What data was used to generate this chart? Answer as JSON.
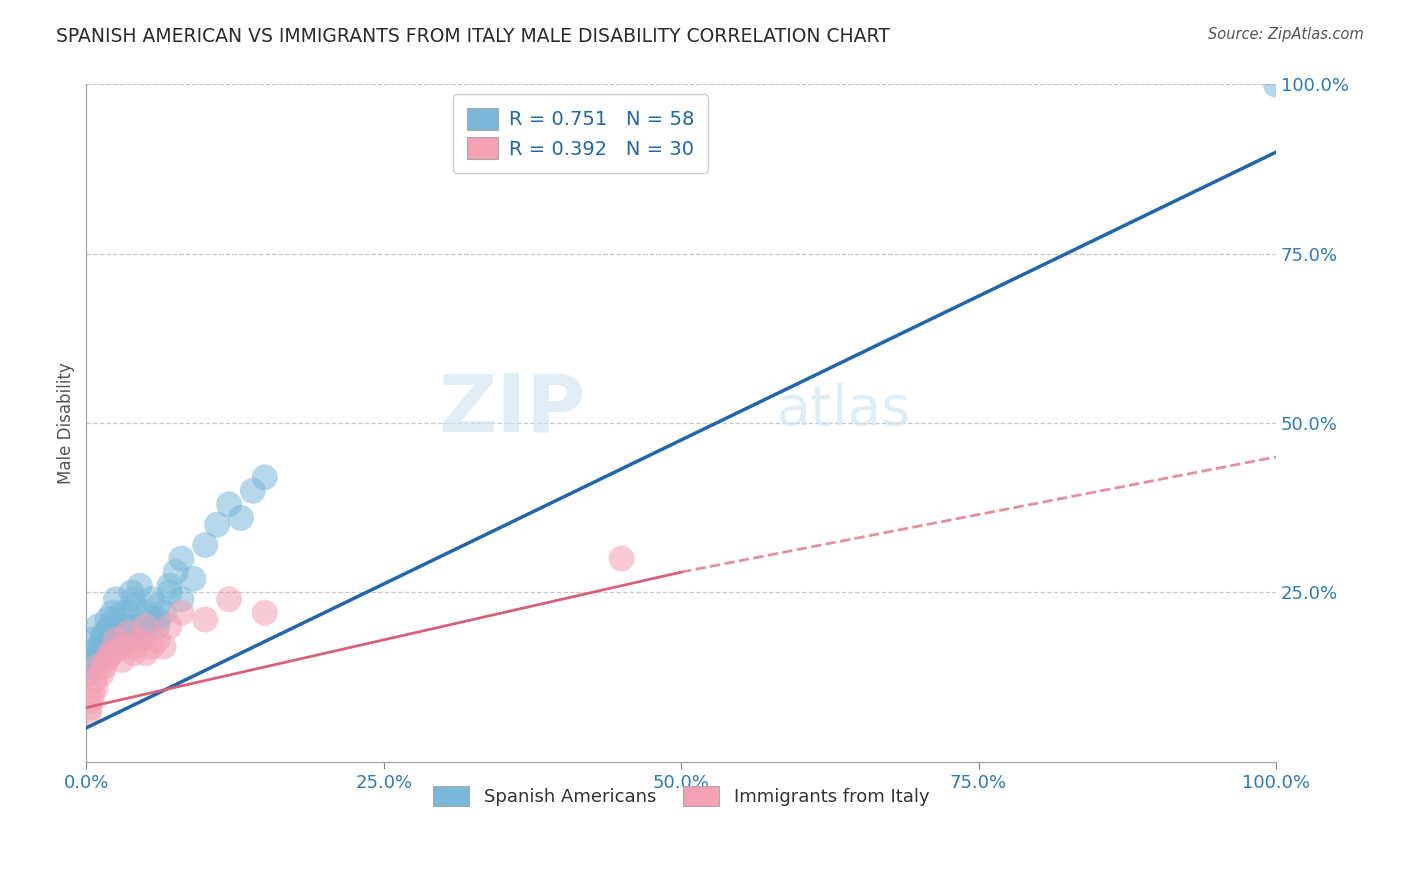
{
  "title": "SPANISH AMERICAN VS IMMIGRANTS FROM ITALY MALE DISABILITY CORRELATION CHART",
  "source": "Source: ZipAtlas.com",
  "ylabel": "Male Disability",
  "watermark_zip": "ZIP",
  "watermark_atlas": "atlas",
  "legend_entry1": "R = 0.751   N = 58",
  "legend_entry2": "R = 0.392   N = 30",
  "color_blue": "#7ab8d9",
  "color_pink": "#f4a0b5",
  "line_blue": "#2166ac",
  "line_pink": "#d9607a",
  "legend_text_color": "#2166ac",
  "title_color": "#2b2b2b",
  "background_color": "#ffffff",
  "grid_color": "#c8c8c8",
  "blue_scatter_x": [
    0.5,
    0.8,
    1.0,
    1.2,
    1.5,
    1.8,
    2.0,
    2.2,
    2.5,
    2.8,
    3.0,
    3.2,
    3.5,
    3.8,
    4.0,
    4.5,
    5.0,
    5.5,
    6.0,
    6.5,
    7.0,
    7.5,
    8.0,
    9.0,
    10.0,
    11.0,
    12.0,
    13.0,
    14.0,
    15.0,
    0.3,
    0.5,
    0.7,
    1.0,
    1.3,
    1.7,
    2.0,
    2.3,
    2.7,
    3.0,
    3.5,
    4.0,
    4.5,
    5.0,
    5.5,
    6.0,
    7.0,
    8.0,
    0.2,
    0.4,
    0.6,
    0.9,
    1.5,
    2.5,
    3.5,
    4.5,
    6.0,
    100.0
  ],
  "blue_scatter_y": [
    18.0,
    15.0,
    20.0,
    17.0,
    19.0,
    21.0,
    16.0,
    22.0,
    24.0,
    18.0,
    22.0,
    20.0,
    18.0,
    25.0,
    23.0,
    26.0,
    22.0,
    24.0,
    20.0,
    22.0,
    25.0,
    28.0,
    30.0,
    27.0,
    32.0,
    35.0,
    38.0,
    36.0,
    40.0,
    42.0,
    14.0,
    16.0,
    15.0,
    17.0,
    18.0,
    19.0,
    20.0,
    21.0,
    17.0,
    18.0,
    22.0,
    24.0,
    20.0,
    19.0,
    21.0,
    23.0,
    26.0,
    24.0,
    13.0,
    14.0,
    15.0,
    16.0,
    17.0,
    19.0,
    20.0,
    18.0,
    21.0,
    100.0
  ],
  "pink_scatter_x": [
    0.3,
    0.5,
    0.7,
    1.0,
    1.3,
    1.7,
    2.0,
    2.5,
    3.0,
    3.5,
    4.0,
    4.5,
    5.0,
    5.5,
    6.0,
    7.0,
    8.0,
    10.0,
    12.0,
    15.0,
    0.4,
    0.8,
    1.5,
    2.2,
    3.0,
    4.0,
    5.0,
    6.5,
    45.0,
    0.2
  ],
  "pink_scatter_y": [
    8.0,
    10.0,
    12.0,
    14.0,
    13.0,
    15.0,
    16.0,
    18.0,
    17.0,
    19.0,
    16.0,
    18.0,
    20.0,
    17.0,
    18.0,
    20.0,
    22.0,
    21.0,
    24.0,
    22.0,
    9.0,
    11.0,
    14.0,
    16.0,
    15.0,
    17.0,
    16.0,
    17.0,
    30.0,
    7.0
  ],
  "blue_line_x0": 0,
  "blue_line_y0": 5,
  "blue_line_x1": 100,
  "blue_line_y1": 90,
  "pink_solid_x0": 0,
  "pink_solid_y0": 8,
  "pink_solid_x1": 50,
  "pink_solid_y1": 28,
  "pink_dash_x0": 50,
  "pink_dash_y0": 28,
  "pink_dash_x1": 100,
  "pink_dash_y1": 45,
  "xlim": [
    0,
    100
  ],
  "ylim": [
    0,
    100
  ],
  "xticks": [
    0,
    25,
    50,
    75,
    100
  ],
  "xticklabels": [
    "0.0%",
    "25.0%",
    "50.0%",
    "75.0%",
    "100.0%"
  ],
  "ytick_values": [
    25,
    50,
    75,
    100
  ],
  "yticklabels_right": [
    "25.0%",
    "50.0%",
    "75.0%",
    "100.0%"
  ]
}
